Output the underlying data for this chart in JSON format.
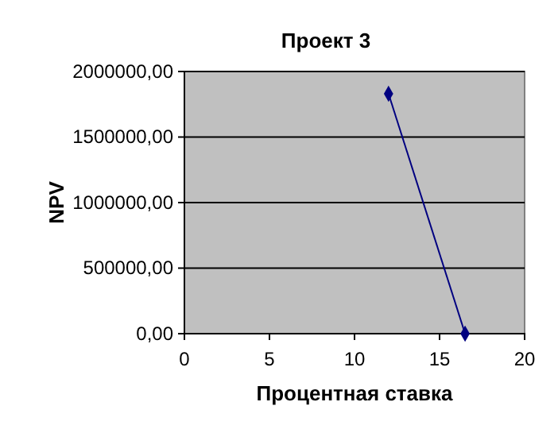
{
  "chart_data": {
    "type": "line",
    "title": "Проект 3",
    "xlabel": "Процентная ставка",
    "ylabel": "NPV",
    "x": [
      12,
      16.5
    ],
    "series": [
      {
        "color": "#000080",
        "values": [
          1830000,
          0
        ]
      }
    ],
    "xlim": [
      0,
      20
    ],
    "xticks": [
      0,
      5,
      10,
      15,
      20
    ],
    "ylim": [
      0,
      2000000
    ],
    "yticks": [
      {
        "value": 0,
        "label": "0,00"
      },
      {
        "value": 500000,
        "label": "500000,00"
      },
      {
        "value": 1000000,
        "label": "1000000,00"
      },
      {
        "value": 1500000,
        "label": "1500000,00"
      },
      {
        "value": 2000000,
        "label": "2000000,00"
      }
    ],
    "grid": "y",
    "marker": "diamond",
    "line_style": "solid"
  }
}
